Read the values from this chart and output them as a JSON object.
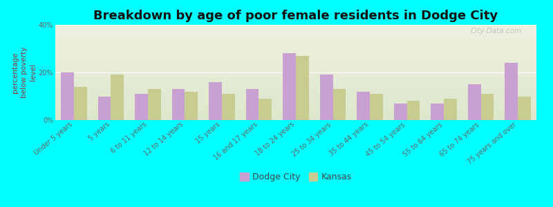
{
  "title": "Breakdown by age of poor female residents in Dodge City",
  "ylabel": "percentage\nbelow poverty\nlevel",
  "categories": [
    "Under 5 years",
    "5 years",
    "6 to 11 years",
    "12 to 14 years",
    "15 years",
    "16 and 17 years",
    "18 to 24 years",
    "25 to 34 years",
    "35 to 44 years",
    "45 to 54 years",
    "55 to 64 years",
    "65 to 74 years",
    "75 years and over"
  ],
  "dodge_city": [
    20,
    10,
    11,
    13,
    16,
    13,
    28,
    19,
    12,
    7,
    7,
    15,
    24
  ],
  "kansas": [
    14,
    19,
    13,
    12,
    11,
    9,
    27,
    13,
    11,
    8,
    9,
    11,
    10
  ],
  "dodge_color": "#c8a0d2",
  "kansas_color": "#c8cc90",
  "bg_color": "#00ffff",
  "plot_bg_top": "#f0f0e0",
  "plot_bg_bottom": "#dce8cc",
  "ylim": [
    0,
    40
  ],
  "yticks": [
    0,
    20,
    40
  ],
  "ytick_labels": [
    "0%",
    "20%",
    "40%"
  ],
  "bar_width": 0.35,
  "legend_dodge": "Dodge City",
  "legend_kansas": "Kansas",
  "watermark": "City-Data.com",
  "title_fontsize": 13,
  "axis_label_fontsize": 7.5,
  "tick_fontsize": 7,
  "legend_fontsize": 9
}
